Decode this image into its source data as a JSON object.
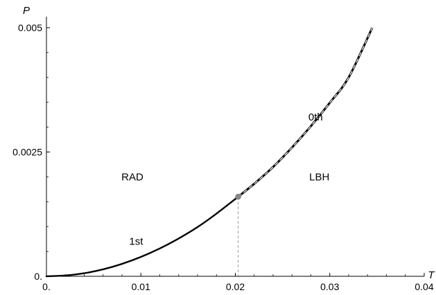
{
  "chart_data": {
    "type": "line",
    "title": "",
    "xlabel": "T",
    "ylabel": "P",
    "xlim": [
      0,
      0.04
    ],
    "ylim": [
      0,
      0.005
    ],
    "x_ticks": [
      0,
      0.01,
      0.02,
      0.03,
      0.04
    ],
    "x_tick_labels": [
      "0.",
      "0.01",
      "0.02",
      "0.03",
      "0.04"
    ],
    "y_ticks": [
      0,
      0.0025,
      0.005
    ],
    "y_tick_labels": [
      "0.",
      "0.0025",
      "0.005"
    ],
    "grid": false,
    "series": [
      {
        "style": "solid",
        "x": [
          0,
          0.002,
          0.004,
          0.006,
          0.008,
          0.01,
          0.012,
          0.014,
          0.016,
          0.018,
          0.0203
        ],
        "y": [
          0,
          1.6e-05,
          6.2e-05,
          0.00014,
          0.00025,
          0.00039,
          0.00056,
          0.00076,
          0.00099,
          0.00126,
          0.0016
        ]
      },
      {
        "style": "dashed",
        "x": [
          0.0203,
          0.022,
          0.024,
          0.026,
          0.028,
          0.03,
          0.032,
          0.0345
        ],
        "y": [
          0.0016,
          0.00186,
          0.0022,
          0.00259,
          0.00302,
          0.00349,
          0.004,
          0.005
        ]
      }
    ],
    "critical_point": {
      "x": 0.0203,
      "y": 0.0016
    },
    "annotations": [
      {
        "text": "RAD",
        "x": 0.0091,
        "y": 0.002
      },
      {
        "text": "LBH",
        "x": 0.0289,
        "y": 0.002
      },
      {
        "text": "0th",
        "x": 0.0285,
        "y": 0.0032
      },
      {
        "text": "1st",
        "x": 0.0095,
        "y": 0.0007
      }
    ]
  }
}
